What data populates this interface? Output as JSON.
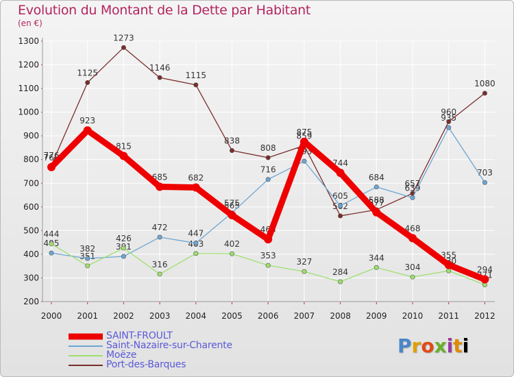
{
  "title": "Evolution du Montant de la Dette par Habitant",
  "unit": "(en €)",
  "logo": "Proxiti",
  "chart_data": {
    "type": "line",
    "title": "Evolution du Montant de la Dette par Habitant",
    "ylabel": "(en €)",
    "xlabel": "",
    "ylim": [
      200,
      1300
    ],
    "yticks": [
      200,
      300,
      400,
      500,
      600,
      700,
      800,
      900,
      1000,
      1100,
      1200,
      1300
    ],
    "categories": [
      "2000",
      "2001",
      "2002",
      "2003",
      "2004",
      "2005",
      "2006",
      "2007",
      "2008",
      "2009",
      "2010",
      "2011",
      "2012"
    ],
    "grid": true,
    "legend_position": "bottom-left",
    "series": [
      {
        "name": "SAINT-FROULT",
        "color": "#ee0000",
        "values": [
          768,
          923,
          815,
          685,
          682,
          565,
          463,
          875,
          744,
          577,
          468,
          355,
          294
        ]
      },
      {
        "name": "Saint-Nazaire-sur-Charente",
        "color": "#6ca6d4",
        "values": [
          405,
          382,
          391,
          472,
          447,
          575,
          716,
          793,
          605,
          684,
          639,
          935,
          703
        ]
      },
      {
        "name": "Moëze",
        "color": "#9ee06e",
        "values": [
          444,
          351,
          426,
          316,
          403,
          402,
          353,
          327,
          284,
          344,
          304,
          330,
          271
        ]
      },
      {
        "name": "Port-des-Barques",
        "color": "#7b2c2c",
        "values": [
          776,
          1125,
          1273,
          1146,
          1115,
          838,
          808,
          859,
          562,
          588,
          657,
          960,
          1080
        ]
      }
    ]
  }
}
